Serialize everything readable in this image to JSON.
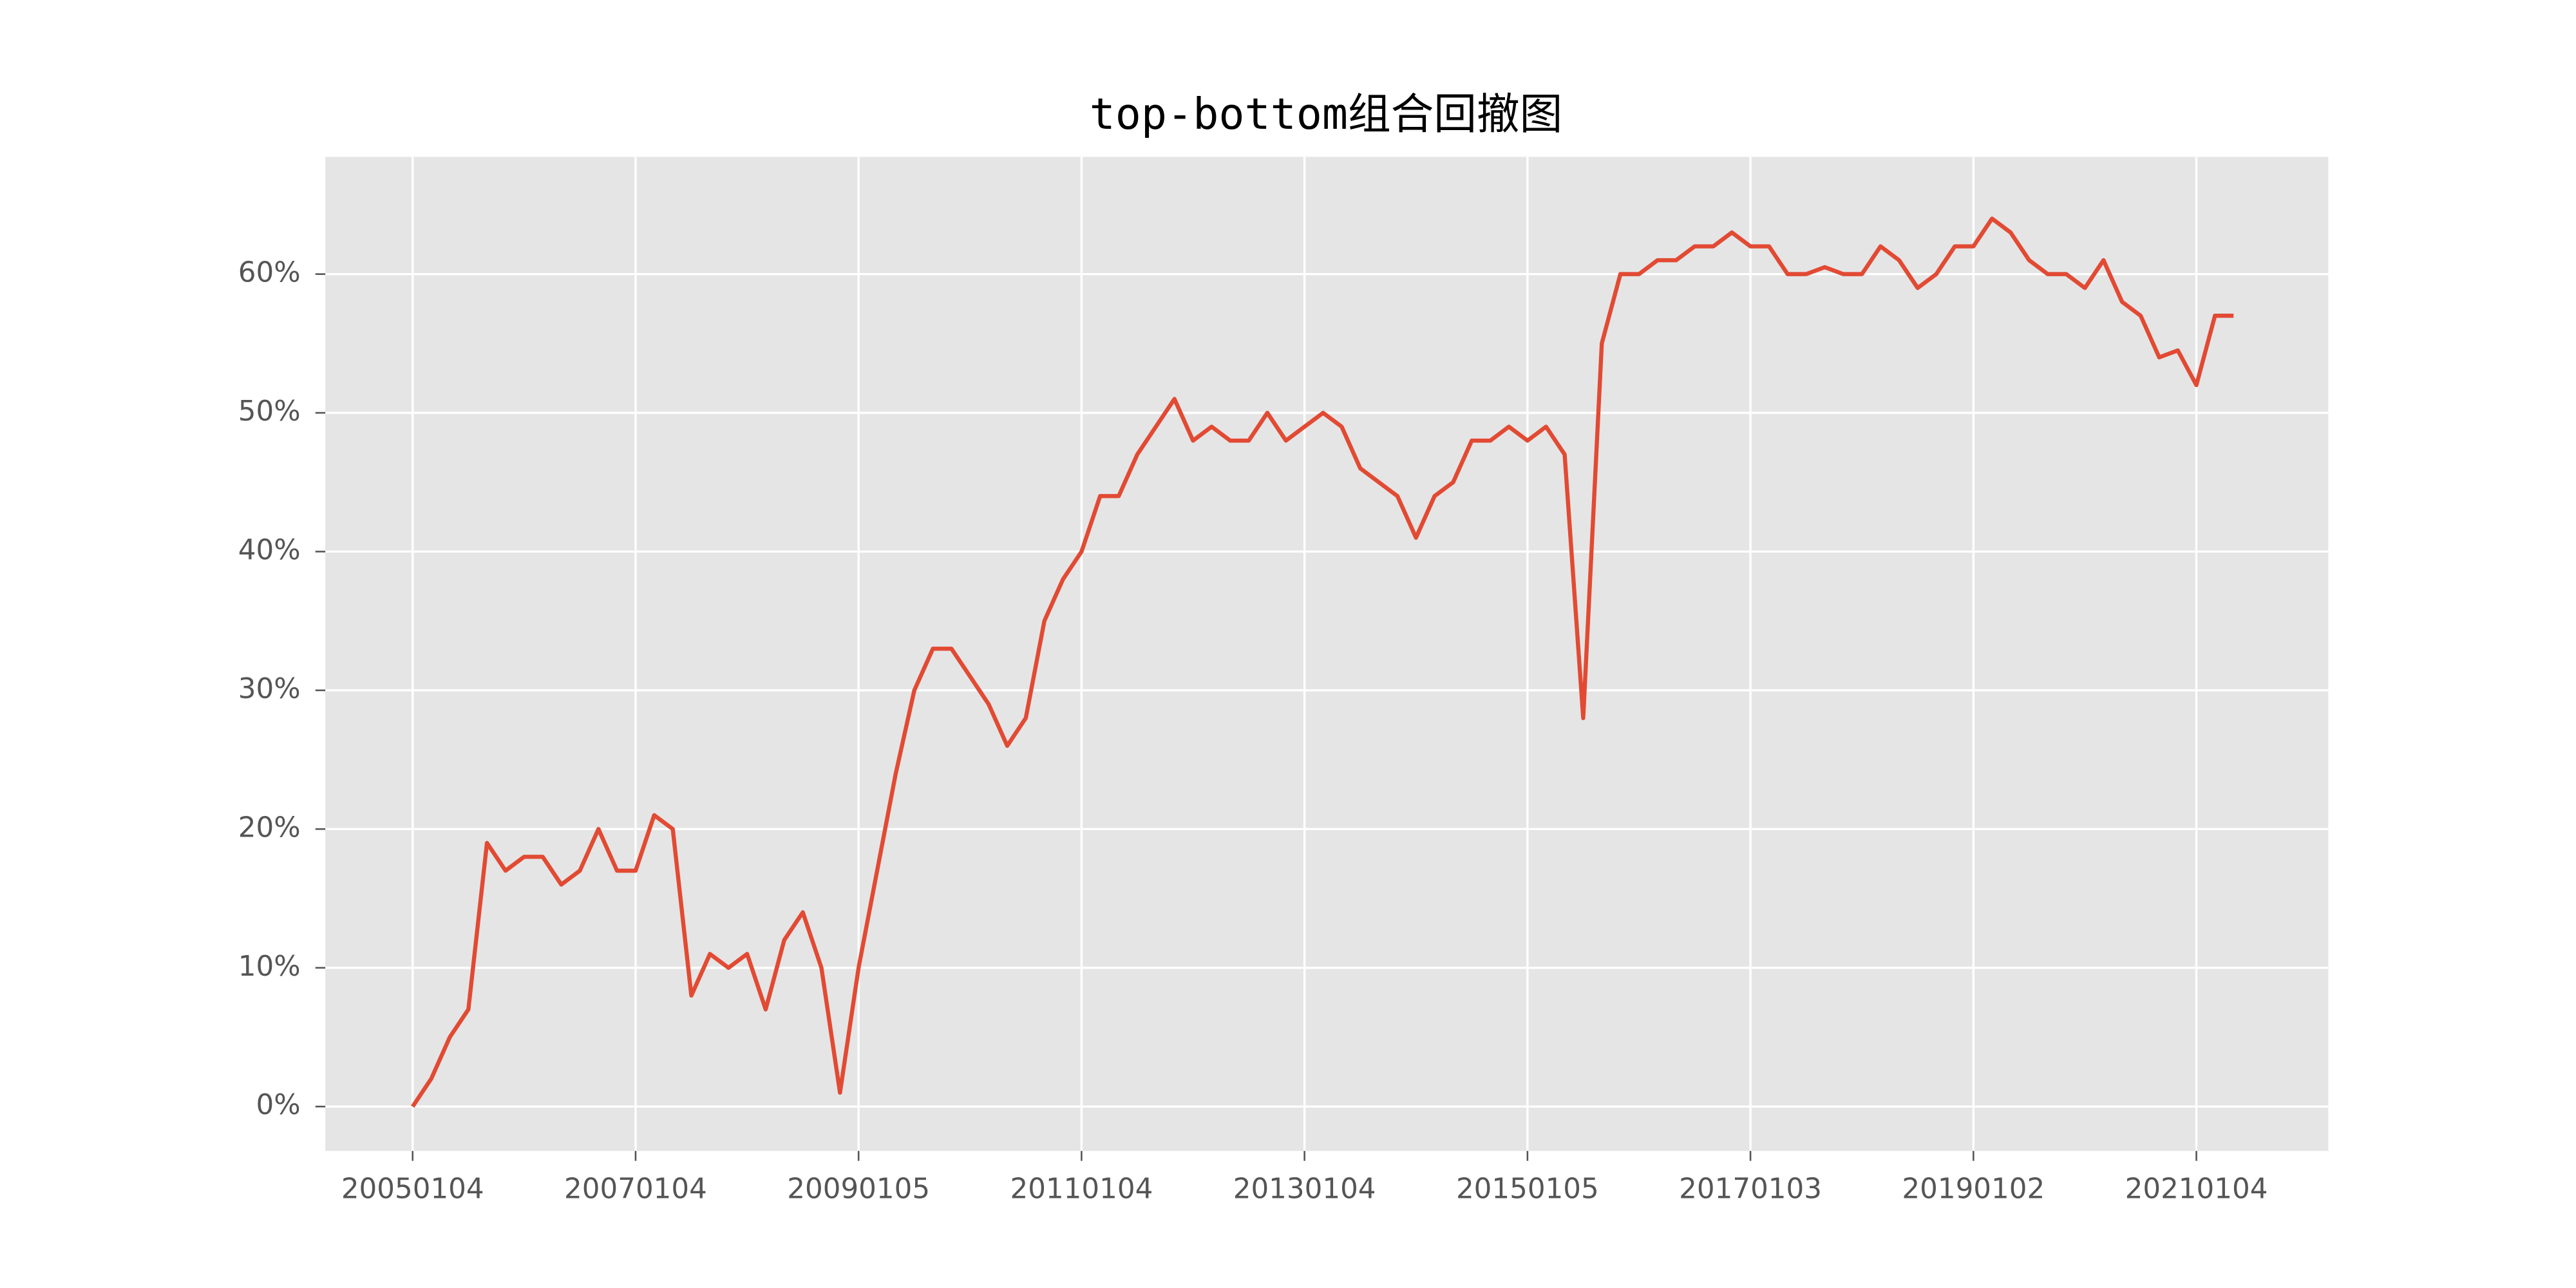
{
  "chart_data": {
    "type": "line",
    "title": "top-bottom组合回撤图",
    "series": [
      {
        "color": "#e24a33",
        "values": [
          0,
          2,
          5,
          7,
          19,
          17,
          18,
          18,
          16,
          17,
          20,
          17,
          17,
          21,
          20,
          8,
          11,
          10,
          11,
          7,
          12,
          14,
          10,
          1,
          10,
          17,
          24,
          30,
          33,
          33,
          31,
          29,
          26,
          28,
          35,
          38,
          40,
          44,
          44,
          47,
          49,
          51,
          48,
          49,
          48,
          48,
          50,
          48,
          49,
          50,
          49,
          46,
          45,
          44,
          41,
          44,
          45,
          48,
          48,
          49,
          48,
          49,
          47,
          28,
          55,
          60,
          60,
          61,
          61,
          62,
          62,
          63,
          62,
          62,
          60,
          60,
          60.5,
          60,
          60,
          62,
          61,
          59,
          60,
          62,
          62,
          64,
          63,
          61,
          60,
          60,
          59,
          61,
          58,
          57,
          54,
          54.5,
          52,
          57,
          57
        ]
      }
    ],
    "xlim": [
      -4.7,
      103.1
    ],
    "xticks": [
      {
        "value": 0,
        "label": "20050104"
      },
      {
        "value": 12,
        "label": "20070104"
      },
      {
        "value": 24,
        "label": "20090105"
      },
      {
        "value": 36,
        "label": "20110104"
      },
      {
        "value": 48,
        "label": "20130104"
      },
      {
        "value": 60,
        "label": "20150105"
      },
      {
        "value": 72,
        "label": "20170103"
      },
      {
        "value": 84,
        "label": "20190102"
      },
      {
        "value": 96,
        "label": "20210104"
      }
    ],
    "ylim": [
      -3.2,
      68.45
    ],
    "yticks": [
      {
        "value": 0,
        "label": "0%"
      },
      {
        "value": 10,
        "label": "10%"
      },
      {
        "value": 20,
        "label": "20%"
      },
      {
        "value": 30,
        "label": "30%"
      },
      {
        "value": 40,
        "label": "40%"
      },
      {
        "value": 50,
        "label": "50%"
      },
      {
        "value": 60,
        "label": "60%"
      }
    ],
    "grid": true
  }
}
